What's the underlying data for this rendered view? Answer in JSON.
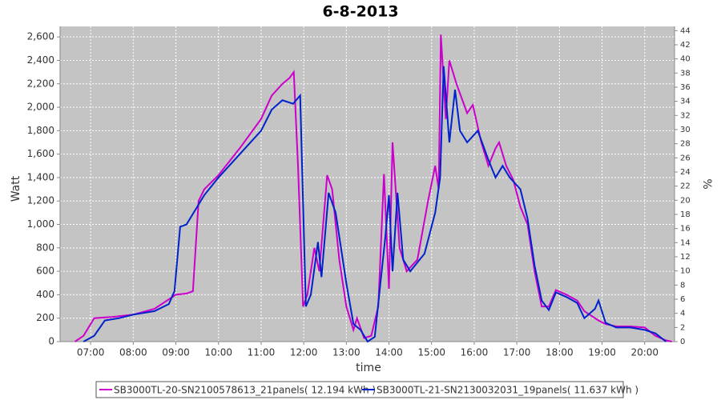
{
  "chart_data": {
    "type": "line",
    "title": "6-8-2013",
    "x_label": "time",
    "y_label": "Watt",
    "y2_label": "%",
    "xlim": [
      "06:17",
      "20:42"
    ],
    "xticks": [
      "07:00",
      "08:00",
      "09:00",
      "10:00",
      "11:00",
      "12:00",
      "13:00",
      "14:00",
      "15:00",
      "16:00",
      "17:00",
      "18:00",
      "19:00",
      "20:00"
    ],
    "ylim": [
      0,
      2690
    ],
    "yticks": [
      0,
      200,
      400,
      600,
      800,
      {
        "value": 1000,
        "label": "1,000"
      },
      {
        "value": 1200,
        "label": "1,200"
      },
      {
        "value": 1400,
        "label": "1,400"
      },
      {
        "value": 1600,
        "label": "1,600"
      },
      {
        "value": 1800,
        "label": "1,800"
      },
      {
        "value": 2000,
        "label": "2,000"
      },
      {
        "value": 2200,
        "label": "2,200"
      },
      {
        "value": 2400,
        "label": "2,400"
      },
      {
        "value": 2600,
        "label": "2,600"
      }
    ],
    "y2lim": [
      0,
      44.6
    ],
    "y2ticks": [
      0,
      2,
      4,
      6,
      8,
      10,
      12,
      14,
      16,
      18,
      20,
      22,
      24,
      26,
      28,
      30,
      32,
      34,
      36,
      38,
      40,
      42,
      44
    ],
    "grid": true,
    "legend": "bottom",
    "series": [
      {
        "name": "SB3000TL-20-SN2100578613_21panels( 12.194 kWh )",
        "color": "#cc00cc",
        "x": [
          "06:38",
          "06:50",
          "07:05",
          "07:30",
          "08:00",
          "08:30",
          "09:00",
          "09:15",
          "09:24",
          "09:32",
          "09:40",
          "10:00",
          "10:30",
          "11:00",
          "11:15",
          "11:30",
          "11:40",
          "11:46",
          "11:52",
          "11:59",
          "12:05",
          "12:15",
          "12:22",
          "12:33",
          "12:40",
          "12:50",
          "13:00",
          "13:10",
          "13:15",
          "13:25",
          "13:35",
          "13:45",
          "13:53",
          "14:00",
          "14:05",
          "14:15",
          "14:25",
          "14:40",
          "14:55",
          "15:05",
          "15:10",
          "15:13",
          "15:20",
          "15:25",
          "15:35",
          "15:50",
          "15:58",
          "16:10",
          "16:20",
          "16:30",
          "16:35",
          "16:45",
          "16:55",
          "17:05",
          "17:15",
          "17:25",
          "17:35",
          "17:45",
          "17:55",
          "18:10",
          "18:25",
          "18:35",
          "18:45",
          "18:55",
          "19:05",
          "19:20",
          "19:40",
          "20:00",
          "20:15",
          "20:30",
          "20:38"
        ],
        "values": [
          0,
          50,
          200,
          210,
          230,
          280,
          400,
          410,
          430,
          1200,
          1300,
          1420,
          1650,
          1900,
          2100,
          2200,
          2250,
          2300,
          1500,
          300,
          400,
          800,
          600,
          1420,
          1300,
          700,
          300,
          100,
          200,
          30,
          50,
          300,
          1430,
          450,
          1700,
          800,
          600,
          700,
          1200,
          1500,
          1300,
          2620,
          1900,
          2400,
          2200,
          1950,
          2020,
          1700,
          1500,
          1650,
          1700,
          1500,
          1380,
          1150,
          1000,
          600,
          300,
          300,
          440,
          400,
          350,
          260,
          220,
          180,
          150,
          130,
          130,
          120,
          50,
          10,
          0
        ]
      },
      {
        "name": "SB3000TL-21-SN2130032031_19panels( 11.637 kWh )",
        "color": "#0022cc",
        "x": [
          "06:50",
          "07:05",
          "07:20",
          "07:40",
          "08:00",
          "08:30",
          "08:50",
          "08:58",
          "09:06",
          "09:15",
          "09:30",
          "09:40",
          "10:00",
          "10:30",
          "11:00",
          "11:15",
          "11:30",
          "11:45",
          "11:55",
          "12:03",
          "12:10",
          "12:20",
          "12:25",
          "12:35",
          "12:45",
          "13:00",
          "13:10",
          "13:20",
          "13:30",
          "13:40",
          "13:55",
          "14:00",
          "14:05",
          "14:12",
          "14:20",
          "14:30",
          "14:50",
          "15:05",
          "15:12",
          "15:17",
          "15:25",
          "15:33",
          "15:40",
          "15:50",
          "16:05",
          "16:20",
          "16:30",
          "16:40",
          "16:50",
          "17:05",
          "17:15",
          "17:25",
          "17:35",
          "17:45",
          "17:55",
          "18:10",
          "18:25",
          "18:35",
          "18:50",
          "18:55",
          "19:05",
          "19:20",
          "19:40",
          "20:00",
          "20:15",
          "20:30"
        ],
        "values": [
          0,
          50,
          180,
          200,
          230,
          260,
          320,
          430,
          980,
          1000,
          1150,
          1250,
          1400,
          1600,
          1800,
          1980,
          2060,
          2030,
          2100,
          300,
          400,
          850,
          550,
          1270,
          1100,
          500,
          150,
          100,
          0,
          40,
          900,
          1250,
          600,
          1270,
          700,
          600,
          750,
          1100,
          1400,
          2350,
          1700,
          2150,
          1800,
          1700,
          1800,
          1550,
          1400,
          1500,
          1400,
          1300,
          1050,
          650,
          350,
          270,
          420,
          380,
          330,
          200,
          280,
          350,
          160,
          120,
          120,
          100,
          70,
          0
        ]
      }
    ]
  }
}
